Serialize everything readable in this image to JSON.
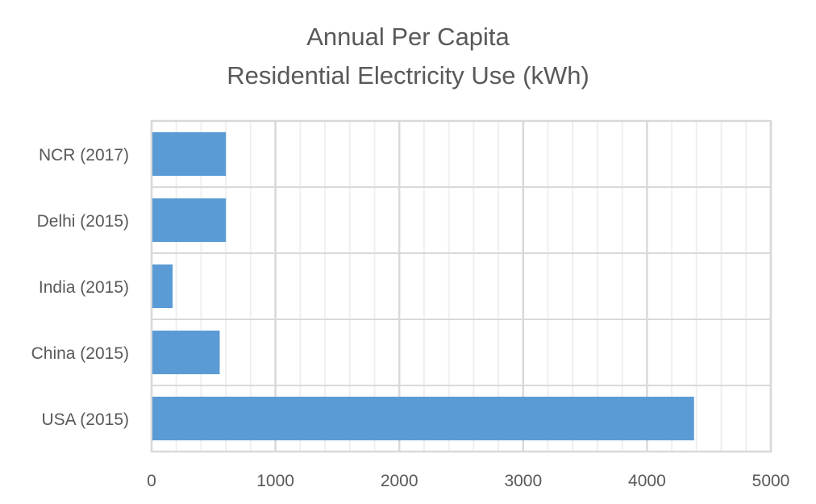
{
  "chart_data": {
    "type": "bar",
    "orientation": "horizontal",
    "title_lines": [
      "Annual Per Capita",
      "Residential Electricity Use (kWh)"
    ],
    "categories": [
      "NCR (2017)",
      "Delhi (2015)",
      "India (2015)",
      "China (2015)",
      "USA (2015)"
    ],
    "values": [
      600,
      600,
      170,
      550,
      4380
    ],
    "xlim": [
      0,
      5000
    ],
    "x_ticks": [
      0,
      1000,
      2000,
      3000,
      4000,
      5000
    ],
    "xlabel": "",
    "ylabel": "",
    "grid": true,
    "minor_grid": true,
    "legend": "none",
    "colors": {
      "bar": "#5B9BD5",
      "major_grid": "#D9D9D9",
      "minor_grid": "#EFEFEF",
      "text": "#595959"
    }
  }
}
